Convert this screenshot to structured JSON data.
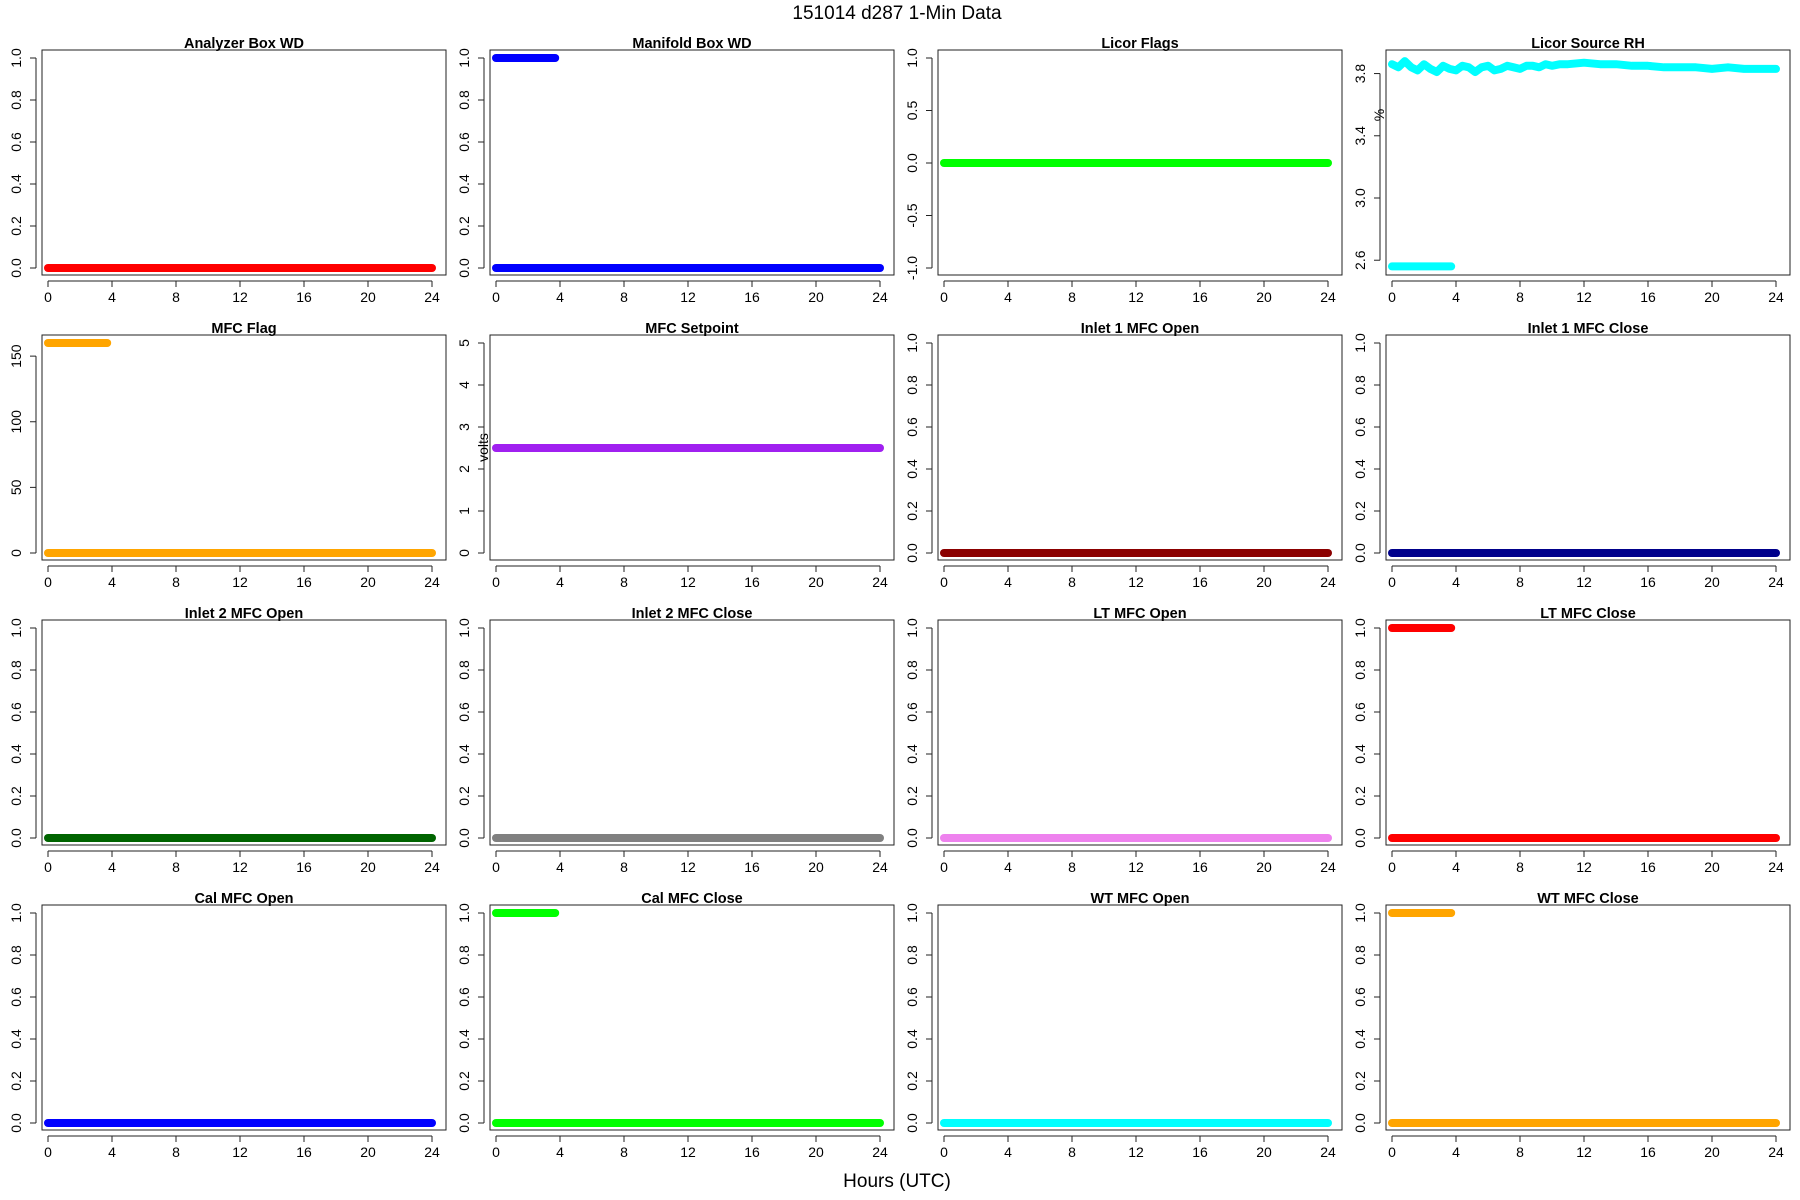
{
  "figure": {
    "title": "151014   d287   1-Min Data",
    "xlabel": "Hours (UTC)"
  },
  "chart_data": [
    {
      "type": "line",
      "title": "Analyzer Box WD",
      "ylabel": "",
      "xlim": [
        0,
        24
      ],
      "ylim": [
        0,
        1
      ],
      "xticks": [
        0,
        4,
        8,
        12,
        16,
        20,
        24
      ],
      "yticks": [
        0,
        0.2,
        0.4,
        0.6,
        0.8,
        1
      ],
      "yticklabels": [
        "0.0",
        "0.2",
        "0.4",
        "0.6",
        "0.8",
        "1.0"
      ],
      "color": "#ff0000",
      "series": [
        {
          "x": [
            0,
            24
          ],
          "y": [
            0,
            0
          ]
        }
      ]
    },
    {
      "type": "line",
      "title": "Manifold Box WD",
      "ylabel": "",
      "xlim": [
        0,
        24
      ],
      "ylim": [
        0,
        1
      ],
      "xticks": [
        0,
        4,
        8,
        12,
        16,
        20,
        24
      ],
      "yticks": [
        0,
        0.2,
        0.4,
        0.6,
        0.8,
        1
      ],
      "yticklabels": [
        "0.0",
        "0.2",
        "0.4",
        "0.6",
        "0.8",
        "1.0"
      ],
      "color": "#0000ff",
      "series": [
        {
          "x": [
            0,
            3.7
          ],
          "y": [
            1,
            1
          ]
        },
        {
          "x": [
            0,
            24
          ],
          "y": [
            0,
            0
          ]
        }
      ]
    },
    {
      "type": "line",
      "title": "Licor Flags",
      "ylabel": "",
      "xlim": [
        0,
        24
      ],
      "ylim": [
        -1,
        1
      ],
      "xticks": [
        0,
        4,
        8,
        12,
        16,
        20,
        24
      ],
      "yticks": [
        -1,
        -0.5,
        0,
        0.5,
        1
      ],
      "yticklabels": [
        "-1.0",
        "-0.5",
        "0.0",
        "0.5",
        "1.0"
      ],
      "color": "#00ff00",
      "series": [
        {
          "x": [
            0,
            24
          ],
          "y": [
            0,
            0
          ]
        }
      ]
    },
    {
      "type": "line",
      "title": "Licor Source RH",
      "ylabel": "%",
      "xlim": [
        0,
        24
      ],
      "ylim": [
        2.55,
        3.9
      ],
      "xticks": [
        0,
        4,
        8,
        12,
        16,
        20,
        24
      ],
      "yticks": [
        2.6,
        3.0,
        3.4,
        3.8
      ],
      "yticklabels": [
        "2.6",
        "3.0",
        "3.4",
        "3.8"
      ],
      "color": "#00ffff",
      "series": [
        {
          "x": [
            0,
            0.4,
            0.8,
            1.2,
            1.6,
            2.0,
            2.4,
            2.8,
            3.2,
            3.6,
            4.0,
            4.4,
            4.8,
            5.2,
            5.6,
            6.0,
            6.4,
            6.8,
            7.2,
            7.6,
            8.0,
            8.4,
            8.8,
            9.2,
            9.6,
            10.0,
            10.5,
            11,
            12,
            13,
            14,
            15,
            16,
            17,
            18,
            19,
            20,
            21,
            22,
            23,
            24
          ],
          "y": [
            3.86,
            3.84,
            3.88,
            3.84,
            3.82,
            3.86,
            3.83,
            3.81,
            3.85,
            3.83,
            3.82,
            3.85,
            3.84,
            3.81,
            3.84,
            3.85,
            3.82,
            3.83,
            3.85,
            3.84,
            3.83,
            3.85,
            3.85,
            3.84,
            3.86,
            3.85,
            3.86,
            3.86,
            3.87,
            3.86,
            3.86,
            3.85,
            3.85,
            3.84,
            3.84,
            3.84,
            3.83,
            3.84,
            3.83,
            3.83,
            3.83
          ]
        },
        {
          "x": [
            0,
            3.7
          ],
          "y": [
            2.56,
            2.56
          ]
        }
      ]
    },
    {
      "type": "line",
      "title": "MFC Flag",
      "ylabel": "",
      "xlim": [
        0,
        24
      ],
      "ylim": [
        0,
        160
      ],
      "xticks": [
        0,
        4,
        8,
        12,
        16,
        20,
        24
      ],
      "yticks": [
        0,
        50,
        100,
        150
      ],
      "yticklabels": [
        "0",
        "50",
        "100",
        "150"
      ],
      "color": "#ffa500",
      "series": [
        {
          "x": [
            0,
            3.7
          ],
          "y": [
            160,
            160
          ]
        },
        {
          "x": [
            0,
            24
          ],
          "y": [
            0,
            0
          ]
        }
      ]
    },
    {
      "type": "line",
      "title": "MFC Setpoint",
      "ylabel": "volts",
      "xlim": [
        0,
        24
      ],
      "ylim": [
        0,
        5
      ],
      "xticks": [
        0,
        4,
        8,
        12,
        16,
        20,
        24
      ],
      "yticks": [
        0,
        1,
        2,
        3,
        4,
        5
      ],
      "yticklabels": [
        "0",
        "1",
        "2",
        "3",
        "4",
        "5"
      ],
      "color": "#a020f0",
      "series": [
        {
          "x": [
            0,
            24
          ],
          "y": [
            2.5,
            2.5
          ]
        }
      ]
    },
    {
      "type": "line",
      "title": "Inlet 1 MFC Open",
      "ylabel": "",
      "xlim": [
        0,
        24
      ],
      "ylim": [
        0,
        1
      ],
      "xticks": [
        0,
        4,
        8,
        12,
        16,
        20,
        24
      ],
      "yticks": [
        0,
        0.2,
        0.4,
        0.6,
        0.8,
        1
      ],
      "yticklabels": [
        "0.0",
        "0.2",
        "0.4",
        "0.6",
        "0.8",
        "1.0"
      ],
      "color": "#8b0000",
      "series": [
        {
          "x": [
            0,
            24
          ],
          "y": [
            0,
            0
          ]
        }
      ]
    },
    {
      "type": "line",
      "title": "Inlet 1 MFC Close",
      "ylabel": "",
      "xlim": [
        0,
        24
      ],
      "ylim": [
        0,
        1
      ],
      "xticks": [
        0,
        4,
        8,
        12,
        16,
        20,
        24
      ],
      "yticks": [
        0,
        0.2,
        0.4,
        0.6,
        0.8,
        1
      ],
      "yticklabels": [
        "0.0",
        "0.2",
        "0.4",
        "0.6",
        "0.8",
        "1.0"
      ],
      "color": "#00008b",
      "series": [
        {
          "x": [
            0,
            24
          ],
          "y": [
            0,
            0
          ]
        }
      ]
    },
    {
      "type": "line",
      "title": "Inlet 2 MFC Open",
      "ylabel": "",
      "xlim": [
        0,
        24
      ],
      "ylim": [
        0,
        1
      ],
      "xticks": [
        0,
        4,
        8,
        12,
        16,
        20,
        24
      ],
      "yticks": [
        0,
        0.2,
        0.4,
        0.6,
        0.8,
        1
      ],
      "yticklabels": [
        "0.0",
        "0.2",
        "0.4",
        "0.6",
        "0.8",
        "1.0"
      ],
      "color": "#006400",
      "series": [
        {
          "x": [
            0,
            24
          ],
          "y": [
            0,
            0
          ]
        }
      ]
    },
    {
      "type": "line",
      "title": "Inlet 2 MFC Close",
      "ylabel": "",
      "xlim": [
        0,
        24
      ],
      "ylim": [
        0,
        1
      ],
      "xticks": [
        0,
        4,
        8,
        12,
        16,
        20,
        24
      ],
      "yticks": [
        0,
        0.2,
        0.4,
        0.6,
        0.8,
        1
      ],
      "yticklabels": [
        "0.0",
        "0.2",
        "0.4",
        "0.6",
        "0.8",
        "1.0"
      ],
      "color": "#808080",
      "series": [
        {
          "x": [
            0,
            24
          ],
          "y": [
            0,
            0
          ]
        }
      ]
    },
    {
      "type": "line",
      "title": "LT MFC Open",
      "ylabel": "",
      "xlim": [
        0,
        24
      ],
      "ylim": [
        0,
        1
      ],
      "xticks": [
        0,
        4,
        8,
        12,
        16,
        20,
        24
      ],
      "yticks": [
        0,
        0.2,
        0.4,
        0.6,
        0.8,
        1
      ],
      "yticklabels": [
        "0.0",
        "0.2",
        "0.4",
        "0.6",
        "0.8",
        "1.0"
      ],
      "color": "#ee82ee",
      "series": [
        {
          "x": [
            0,
            24
          ],
          "y": [
            0,
            0
          ]
        }
      ]
    },
    {
      "type": "line",
      "title": "LT MFC Close",
      "ylabel": "",
      "xlim": [
        0,
        24
      ],
      "ylim": [
        0,
        1
      ],
      "xticks": [
        0,
        4,
        8,
        12,
        16,
        20,
        24
      ],
      "yticks": [
        0,
        0.2,
        0.4,
        0.6,
        0.8,
        1
      ],
      "yticklabels": [
        "0.0",
        "0.2",
        "0.4",
        "0.6",
        "0.8",
        "1.0"
      ],
      "color": "#ff0000",
      "series": [
        {
          "x": [
            0,
            3.7
          ],
          "y": [
            1,
            1
          ]
        },
        {
          "x": [
            0,
            24
          ],
          "y": [
            0,
            0
          ]
        }
      ]
    },
    {
      "type": "line",
      "title": "Cal MFC Open",
      "ylabel": "",
      "xlim": [
        0,
        24
      ],
      "ylim": [
        0,
        1
      ],
      "xticks": [
        0,
        4,
        8,
        12,
        16,
        20,
        24
      ],
      "yticks": [
        0,
        0.2,
        0.4,
        0.6,
        0.8,
        1
      ],
      "yticklabels": [
        "0.0",
        "0.2",
        "0.4",
        "0.6",
        "0.8",
        "1.0"
      ],
      "color": "#0000ff",
      "series": [
        {
          "x": [
            0,
            24
          ],
          "y": [
            0,
            0
          ]
        }
      ]
    },
    {
      "type": "line",
      "title": "Cal MFC Close",
      "ylabel": "",
      "xlim": [
        0,
        24
      ],
      "ylim": [
        0,
        1
      ],
      "xticks": [
        0,
        4,
        8,
        12,
        16,
        20,
        24
      ],
      "yticks": [
        0,
        0.2,
        0.4,
        0.6,
        0.8,
        1
      ],
      "yticklabels": [
        "0.0",
        "0.2",
        "0.4",
        "0.6",
        "0.8",
        "1.0"
      ],
      "color": "#00ff00",
      "series": [
        {
          "x": [
            0,
            3.7
          ],
          "y": [
            1,
            1
          ]
        },
        {
          "x": [
            0,
            24
          ],
          "y": [
            0,
            0
          ]
        }
      ]
    },
    {
      "type": "line",
      "title": "WT MFC Open",
      "ylabel": "",
      "xlim": [
        0,
        24
      ],
      "ylim": [
        0,
        1
      ],
      "xticks": [
        0,
        4,
        8,
        12,
        16,
        20,
        24
      ],
      "yticks": [
        0,
        0.2,
        0.4,
        0.6,
        0.8,
        1
      ],
      "yticklabels": [
        "0.0",
        "0.2",
        "0.4",
        "0.6",
        "0.8",
        "1.0"
      ],
      "color": "#00ffff",
      "series": [
        {
          "x": [
            0,
            24
          ],
          "y": [
            0,
            0
          ]
        }
      ]
    },
    {
      "type": "line",
      "title": "WT MFC Close",
      "ylabel": "",
      "xlim": [
        0,
        24
      ],
      "ylim": [
        0,
        1
      ],
      "xticks": [
        0,
        4,
        8,
        12,
        16,
        20,
        24
      ],
      "yticks": [
        0,
        0.2,
        0.4,
        0.6,
        0.8,
        1
      ],
      "yticklabels": [
        "0.0",
        "0.2",
        "0.4",
        "0.6",
        "0.8",
        "1.0"
      ],
      "color": "#ffa500",
      "series": [
        {
          "x": [
            0,
            3.7
          ],
          "y": [
            1,
            1
          ]
        },
        {
          "x": [
            0,
            24
          ],
          "y": [
            0,
            0
          ]
        }
      ]
    }
  ]
}
